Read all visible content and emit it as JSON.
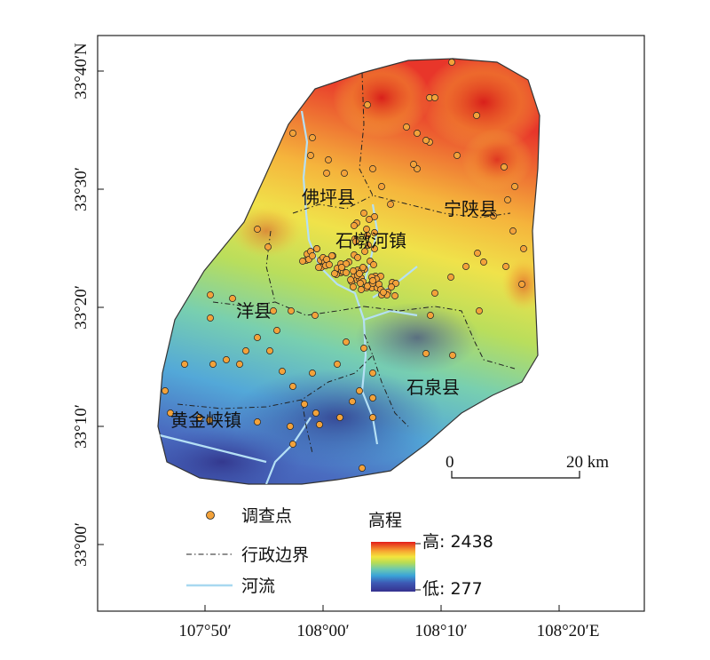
{
  "map": {
    "place_labels": {
      "foping": "佛坪县",
      "ningshan": "宁陕县",
      "shijiahe": "石墩河镇",
      "yang": "洋县",
      "shiquan": "石泉县",
      "huangjinxia": "黄金峡镇"
    },
    "lat_ticks": [
      "33°40′N",
      "33°30′",
      "33°20′",
      "33°10′",
      "33°00′"
    ],
    "lon_ticks": [
      "107°50′",
      "108°00′",
      "108°10′",
      "108°20′E"
    ],
    "scale_bar": {
      "start": "0",
      "end": "20 km"
    },
    "colors": {
      "survey_point": "#f3a23a",
      "river": "#a8d8f0",
      "elev_high": "#e8241a",
      "elev_low": "#3a3a9c"
    }
  },
  "legend": {
    "survey_point": "调查点",
    "boundary": "行政边界",
    "river": "河流",
    "elevation_title": "高程",
    "elev_high_label": "高: 2438",
    "elev_low_label": "低: 277"
  }
}
